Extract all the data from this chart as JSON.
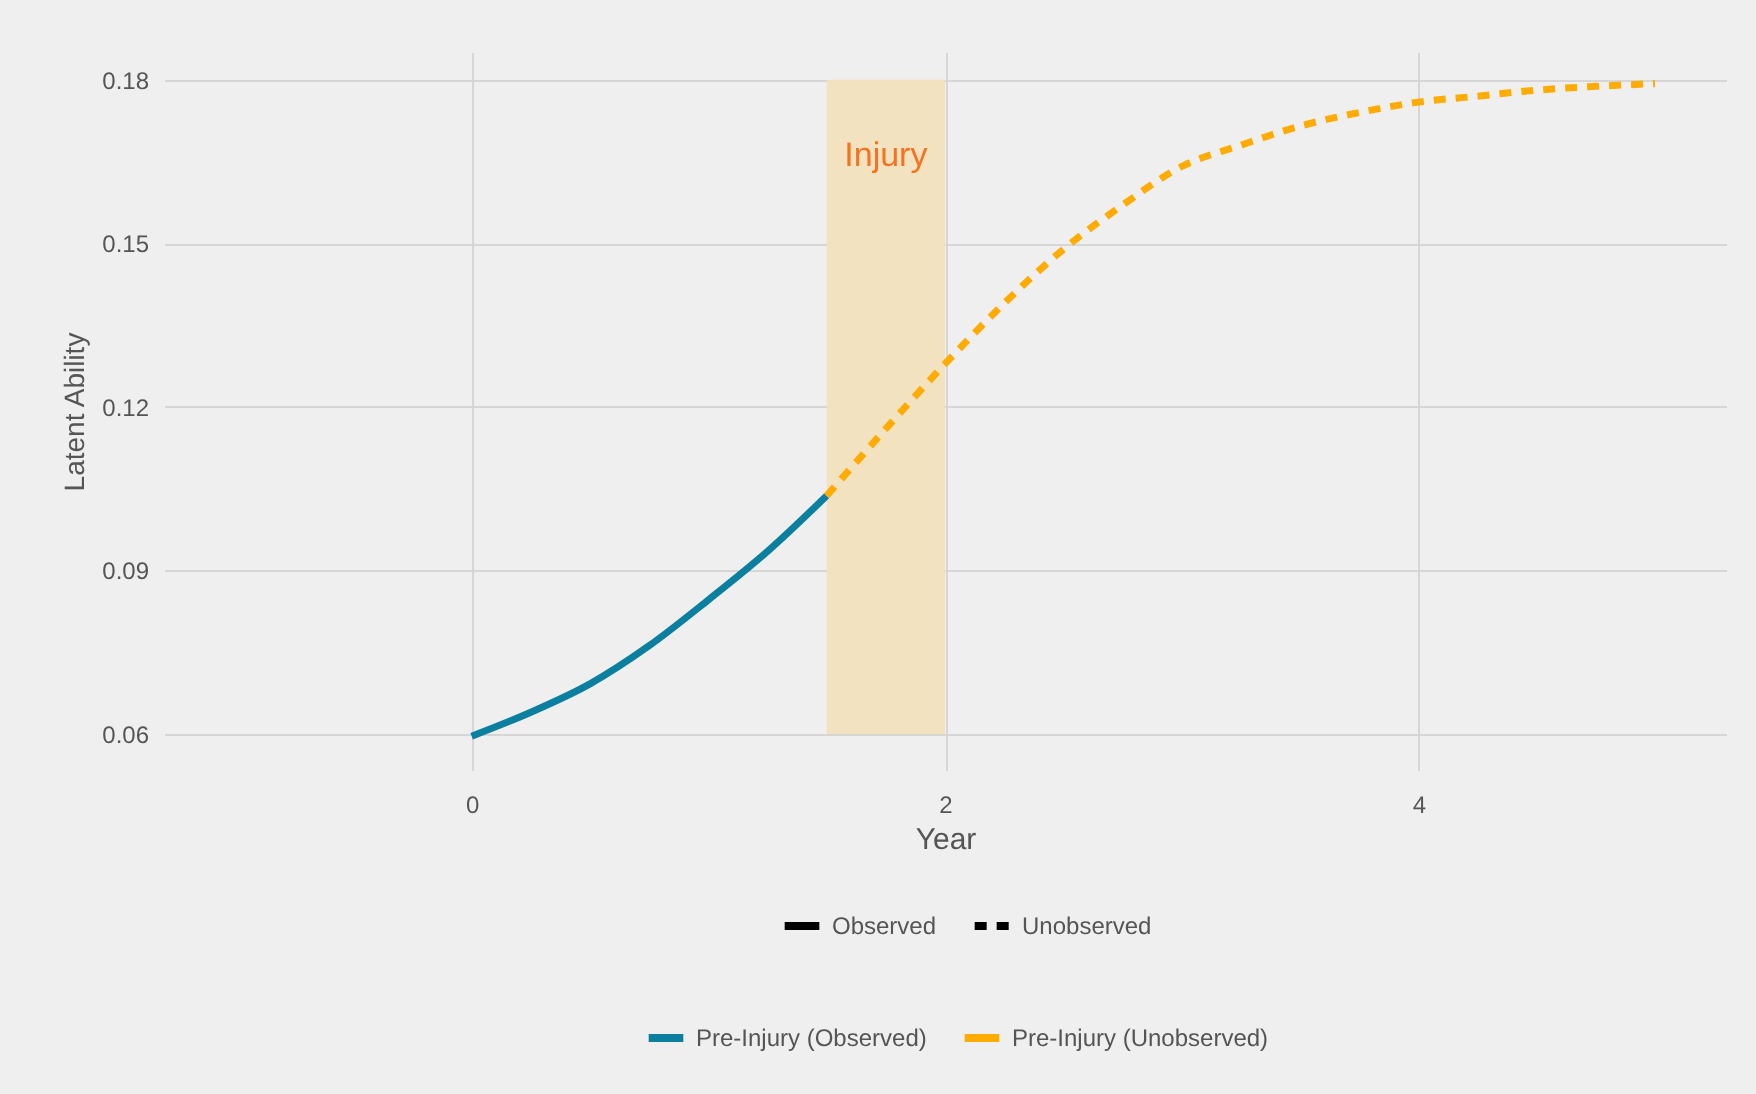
{
  "chart_data": {
    "type": "line",
    "xlabel": "Year",
    "ylabel": "Latent Ability",
    "xlim": [
      -1.3,
      5.3
    ],
    "xticks": [
      0,
      2,
      4
    ],
    "ylim": [
      0.0534,
      0.1851
    ],
    "yticks": [
      0.06,
      0.09,
      0.12,
      0.15,
      0.18
    ],
    "grid": true,
    "legend": "bottom",
    "annotations": [
      "Observed",
      "Unobserved"
    ],
    "bands": [
      {
        "axis": "x",
        "from": 1.5,
        "to": 2,
        "label": "Injury",
        "color": "#f2e2c0"
      }
    ],
    "series": [
      {
        "name": "Pre-Injury (Observed)",
        "color": "#0b7fa0",
        "line_style": "solid",
        "x": [
          0,
          0.25,
          0.5,
          0.75,
          1,
          1.25,
          1.5
        ],
        "values": [
          0.0596,
          0.064,
          0.0692,
          0.0762,
          0.0846,
          0.0935,
          0.1037
        ]
      },
      {
        "name": "Pre-Injury (Unobserved)",
        "color": "#ffab00",
        "line_style": "dashed",
        "x": [
          1.5,
          1.75,
          2,
          2.25,
          2.5,
          2.75,
          3,
          3.25,
          3.5,
          3.75,
          4,
          4.25,
          4.5,
          4.75,
          5
        ],
        "values": [
          0.1037,
          0.116,
          0.1279,
          0.139,
          0.1489,
          0.157,
          0.1641,
          0.168,
          0.1715,
          0.174,
          0.1759,
          0.177,
          0.1781,
          0.1788,
          0.1793
        ]
      }
    ]
  }
}
